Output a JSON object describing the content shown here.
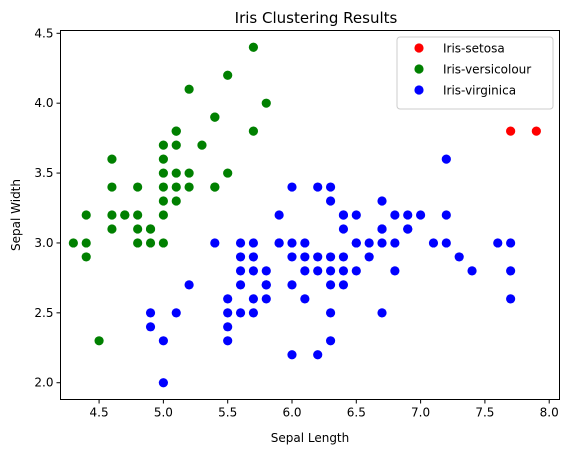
{
  "chart_data": {
    "type": "scatter",
    "title": "Iris Clustering Results",
    "xlabel": "Sepal Length",
    "ylabel": "Sepal Width",
    "xlim": [
      4.2,
      8.08
    ],
    "ylim": [
      1.88,
      4.52
    ],
    "xticks": [
      "4.5",
      "5.0",
      "5.5",
      "6.0",
      "6.5",
      "7.0",
      "7.5",
      "8.0"
    ],
    "yticks": [
      "2.0",
      "2.5",
      "3.0",
      "3.5",
      "4.0",
      "4.5"
    ],
    "grid": false,
    "legend_position": "top-right",
    "series": [
      {
        "name": "Iris-setosa",
        "color": "#ff0000",
        "points": [
          [
            7.7,
            3.8
          ],
          [
            7.9,
            3.8
          ]
        ]
      },
      {
        "name": "Iris-versicolour",
        "color": "#008000",
        "points": [
          [
            5.7,
            4.4
          ],
          [
            5.2,
            4.1
          ],
          [
            5.5,
            4.2
          ],
          [
            5.8,
            4.0
          ],
          [
            5.4,
            3.9
          ],
          [
            5.4,
            3.9
          ],
          [
            5.1,
            3.8
          ],
          [
            5.1,
            3.8
          ],
          [
            5.7,
            3.8
          ],
          [
            5.0,
            3.7
          ],
          [
            5.1,
            3.7
          ],
          [
            5.3,
            3.7
          ],
          [
            4.6,
            3.6
          ],
          [
            5.0,
            3.6
          ],
          [
            5.0,
            3.5
          ],
          [
            5.1,
            3.5
          ],
          [
            5.2,
            3.5
          ],
          [
            5.5,
            3.5
          ],
          [
            4.6,
            3.4
          ],
          [
            4.8,
            3.4
          ],
          [
            5.0,
            3.4
          ],
          [
            5.1,
            3.4
          ],
          [
            5.2,
            3.4
          ],
          [
            5.4,
            3.4
          ],
          [
            5.4,
            3.4
          ],
          [
            5.0,
            3.3
          ],
          [
            5.1,
            3.3
          ],
          [
            4.4,
            3.2
          ],
          [
            4.6,
            3.2
          ],
          [
            4.7,
            3.2
          ],
          [
            4.7,
            3.2
          ],
          [
            4.8,
            3.2
          ],
          [
            5.0,
            3.2
          ],
          [
            4.6,
            3.1
          ],
          [
            4.8,
            3.1
          ],
          [
            4.9,
            3.1
          ],
          [
            4.9,
            3.1
          ],
          [
            4.3,
            3.0
          ],
          [
            4.4,
            3.0
          ],
          [
            4.8,
            3.0
          ],
          [
            4.9,
            3.0
          ],
          [
            5.0,
            3.0
          ],
          [
            4.4,
            2.9
          ],
          [
            4.5,
            2.3
          ]
        ]
      },
      {
        "name": "Iris-virginica",
        "color": "#0000ff",
        "points": [
          [
            7.2,
            3.6
          ],
          [
            6.0,
            3.4
          ],
          [
            6.2,
            3.4
          ],
          [
            6.3,
            3.4
          ],
          [
            6.3,
            3.3
          ],
          [
            6.7,
            3.3
          ],
          [
            5.9,
            3.2
          ],
          [
            6.4,
            3.2
          ],
          [
            6.5,
            3.2
          ],
          [
            6.9,
            3.2
          ],
          [
            6.8,
            3.2
          ],
          [
            7.0,
            3.2
          ],
          [
            7.2,
            3.2
          ],
          [
            6.4,
            3.2
          ],
          [
            6.4,
            3.1
          ],
          [
            6.7,
            3.1
          ],
          [
            6.9,
            3.1
          ],
          [
            6.9,
            3.1
          ],
          [
            6.7,
            3.1
          ],
          [
            5.4,
            3.0
          ],
          [
            5.6,
            3.0
          ],
          [
            5.7,
            3.0
          ],
          [
            5.9,
            3.0
          ],
          [
            6.0,
            3.0
          ],
          [
            6.1,
            3.0
          ],
          [
            6.5,
            3.0
          ],
          [
            6.6,
            3.0
          ],
          [
            6.7,
            3.0
          ],
          [
            6.8,
            3.0
          ],
          [
            7.1,
            3.0
          ],
          [
            7.2,
            3.0
          ],
          [
            7.6,
            3.0
          ],
          [
            7.7,
            3.0
          ],
          [
            6.5,
            3.0
          ],
          [
            5.9,
            3.0
          ],
          [
            5.6,
            2.9
          ],
          [
            6.0,
            2.9
          ],
          [
            6.1,
            2.9
          ],
          [
            6.2,
            2.9
          ],
          [
            6.3,
            2.9
          ],
          [
            6.4,
            2.9
          ],
          [
            6.6,
            2.9
          ],
          [
            7.3,
            2.9
          ],
          [
            5.7,
            2.9
          ],
          [
            5.6,
            2.8
          ],
          [
            5.7,
            2.8
          ],
          [
            5.8,
            2.8
          ],
          [
            6.1,
            2.8
          ],
          [
            6.2,
            2.8
          ],
          [
            6.3,
            2.8
          ],
          [
            6.4,
            2.8
          ],
          [
            6.5,
            2.8
          ],
          [
            6.8,
            2.8
          ],
          [
            7.4,
            2.8
          ],
          [
            7.7,
            2.8
          ],
          [
            5.2,
            2.7
          ],
          [
            5.6,
            2.7
          ],
          [
            5.8,
            2.7
          ],
          [
            6.0,
            2.7
          ],
          [
            6.3,
            2.7
          ],
          [
            6.4,
            2.7
          ],
          [
            5.8,
            2.7
          ],
          [
            5.5,
            2.6
          ],
          [
            5.7,
            2.6
          ],
          [
            5.8,
            2.6
          ],
          [
            6.1,
            2.6
          ],
          [
            7.7,
            2.6
          ],
          [
            4.9,
            2.5
          ],
          [
            5.1,
            2.5
          ],
          [
            5.5,
            2.5
          ],
          [
            5.6,
            2.5
          ],
          [
            5.7,
            2.5
          ],
          [
            6.3,
            2.5
          ],
          [
            6.7,
            2.5
          ],
          [
            4.9,
            2.4
          ],
          [
            5.5,
            2.4
          ],
          [
            5.0,
            2.3
          ],
          [
            5.5,
            2.3
          ],
          [
            6.3,
            2.3
          ],
          [
            6.0,
            2.2
          ],
          [
            6.2,
            2.2
          ],
          [
            5.0,
            2.0
          ]
        ]
      }
    ]
  }
}
